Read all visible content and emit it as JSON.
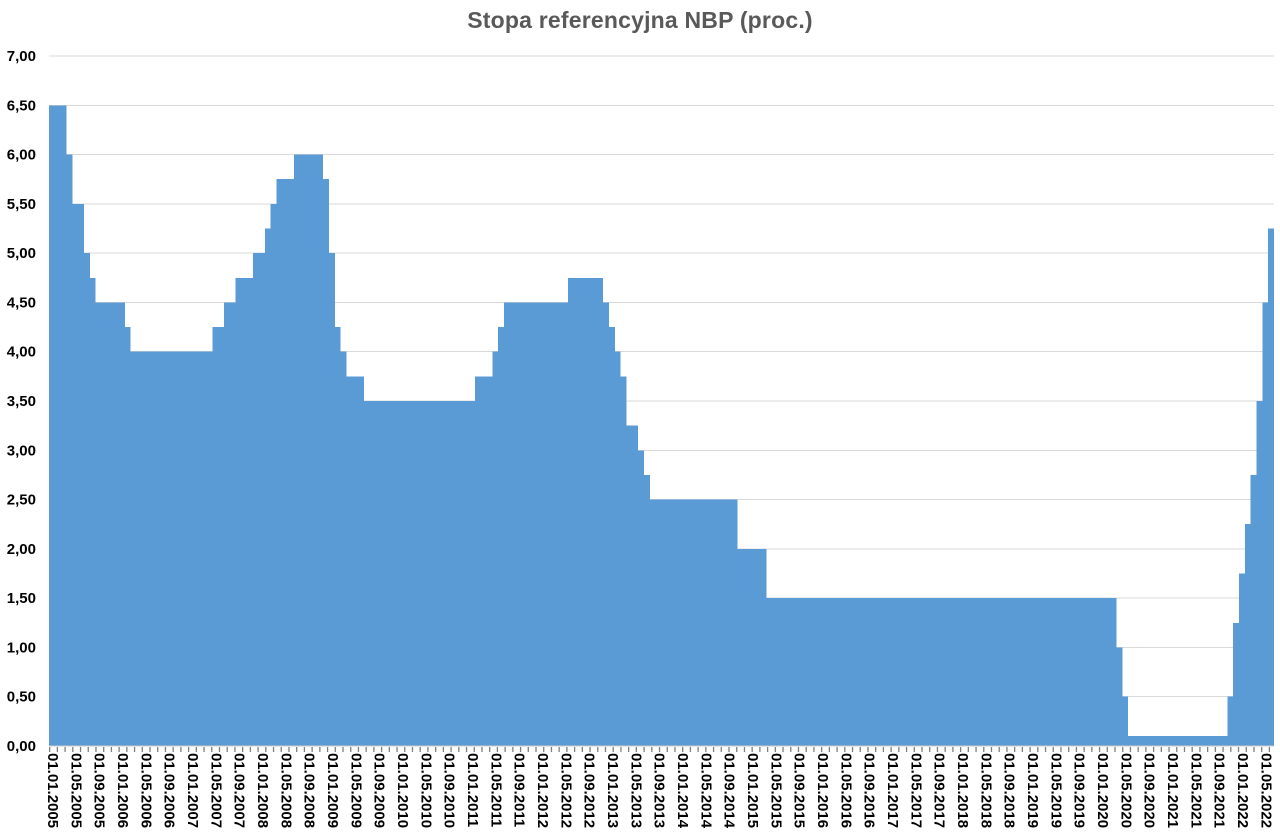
{
  "colors": {
    "bar": "#5b9bd5",
    "gridline": "#d9d9d9",
    "axis_line": "#c9c9c9",
    "tick": "#808080",
    "title": "#595959",
    "axis_text": "#000000",
    "background": "#ffffff"
  },
  "chart_data": {
    "type": "bar",
    "title": "Stopa referencyjna NBP (proc.)",
    "ylabel": "",
    "xlabel": "",
    "ylim": [
      0,
      7
    ],
    "y_tick_step": 0.5,
    "grid": "horizontal",
    "legend": "none",
    "frequency": "monthly",
    "x_start_month": "01.2005",
    "x_end_month": "06.2022",
    "values": [
      6.5,
      6.5,
      6.5,
      6.0,
      5.5,
      5.5,
      5.0,
      4.75,
      4.5,
      4.5,
      4.5,
      4.5,
      4.5,
      4.25,
      4.0,
      4.0,
      4.0,
      4.0,
      4.0,
      4.0,
      4.0,
      4.0,
      4.0,
      4.0,
      4.0,
      4.0,
      4.0,
      4.0,
      4.25,
      4.25,
      4.5,
      4.5,
      4.75,
      4.75,
      4.75,
      5.0,
      5.0,
      5.25,
      5.5,
      5.75,
      5.75,
      5.75,
      6.0,
      6.0,
      6.0,
      6.0,
      6.0,
      5.75,
      5.0,
      4.25,
      4.0,
      3.75,
      3.75,
      3.75,
      3.5,
      3.5,
      3.5,
      3.5,
      3.5,
      3.5,
      3.5,
      3.5,
      3.5,
      3.5,
      3.5,
      3.5,
      3.5,
      3.5,
      3.5,
      3.5,
      3.5,
      3.5,
      3.5,
      3.75,
      3.75,
      3.75,
      4.0,
      4.25,
      4.5,
      4.5,
      4.5,
      4.5,
      4.5,
      4.5,
      4.5,
      4.5,
      4.5,
      4.5,
      4.5,
      4.75,
      4.75,
      4.75,
      4.75,
      4.75,
      4.75,
      4.5,
      4.25,
      4.0,
      3.75,
      3.25,
      3.25,
      3.0,
      2.75,
      2.5,
      2.5,
      2.5,
      2.5,
      2.5,
      2.5,
      2.5,
      2.5,
      2.5,
      2.5,
      2.5,
      2.5,
      2.5,
      2.5,
      2.5,
      2.0,
      2.0,
      2.0,
      2.0,
      2.0,
      1.5,
      1.5,
      1.5,
      1.5,
      1.5,
      1.5,
      1.5,
      1.5,
      1.5,
      1.5,
      1.5,
      1.5,
      1.5,
      1.5,
      1.5,
      1.5,
      1.5,
      1.5,
      1.5,
      1.5,
      1.5,
      1.5,
      1.5,
      1.5,
      1.5,
      1.5,
      1.5,
      1.5,
      1.5,
      1.5,
      1.5,
      1.5,
      1.5,
      1.5,
      1.5,
      1.5,
      1.5,
      1.5,
      1.5,
      1.5,
      1.5,
      1.5,
      1.5,
      1.5,
      1.5,
      1.5,
      1.5,
      1.5,
      1.5,
      1.5,
      1.5,
      1.5,
      1.5,
      1.5,
      1.5,
      1.5,
      1.5,
      1.5,
      1.5,
      1.5,
      1.0,
      0.5,
      0.1,
      0.1,
      0.1,
      0.1,
      0.1,
      0.1,
      0.1,
      0.1,
      0.1,
      0.1,
      0.1,
      0.1,
      0.1,
      0.1,
      0.1,
      0.1,
      0.1,
      0.5,
      1.25,
      1.75,
      2.25,
      2.75,
      3.5,
      4.5,
      5.25
    ],
    "x_tick_interval_months": 4,
    "x_tick_labels": [
      "01.01.2005",
      "01.05.2005",
      "01.09.2005",
      "01.01.2006",
      "01.05.2006",
      "01.09.2006",
      "01.01.2007",
      "01.05.2007",
      "01.09.2007",
      "01.01.2008",
      "01.05.2008",
      "01.09.2008",
      "01.01.2009",
      "01.05.2009",
      "01.09.2009",
      "01.01.2010",
      "01.05.2010",
      "01.09.2010",
      "01.01.2011",
      "01.05.2011",
      "01.09.2011",
      "01.01.2012",
      "01.05.2012",
      "01.09.2012",
      "01.01.2013",
      "01.05.2013",
      "01.09.2013",
      "01.01.2014",
      "01.05.2014",
      "01.09.2014",
      "01.01.2015",
      "01.05.2015",
      "01.09.2015",
      "01.01.2016",
      "01.05.2016",
      "01.09.2016",
      "01.01.2017",
      "01.05.2017",
      "01.09.2017",
      "01.01.2018",
      "01.05.2018",
      "01.09.2018",
      "01.01.2019",
      "01.05.2019",
      "01.09.2019",
      "01.01.2020",
      "01.05.2020",
      "01.09.2020",
      "01.01.2021",
      "01.05.2021",
      "01.09.2021",
      "01.01.2022",
      "01.05.2022"
    ],
    "y_tick_labels": [
      "0,00",
      "0,50",
      "1,00",
      "1,50",
      "2,00",
      "2,50",
      "3,00",
      "3,50",
      "4,00",
      "4,50",
      "5,00",
      "5,50",
      "6,00",
      "6,50",
      "7,00"
    ]
  }
}
